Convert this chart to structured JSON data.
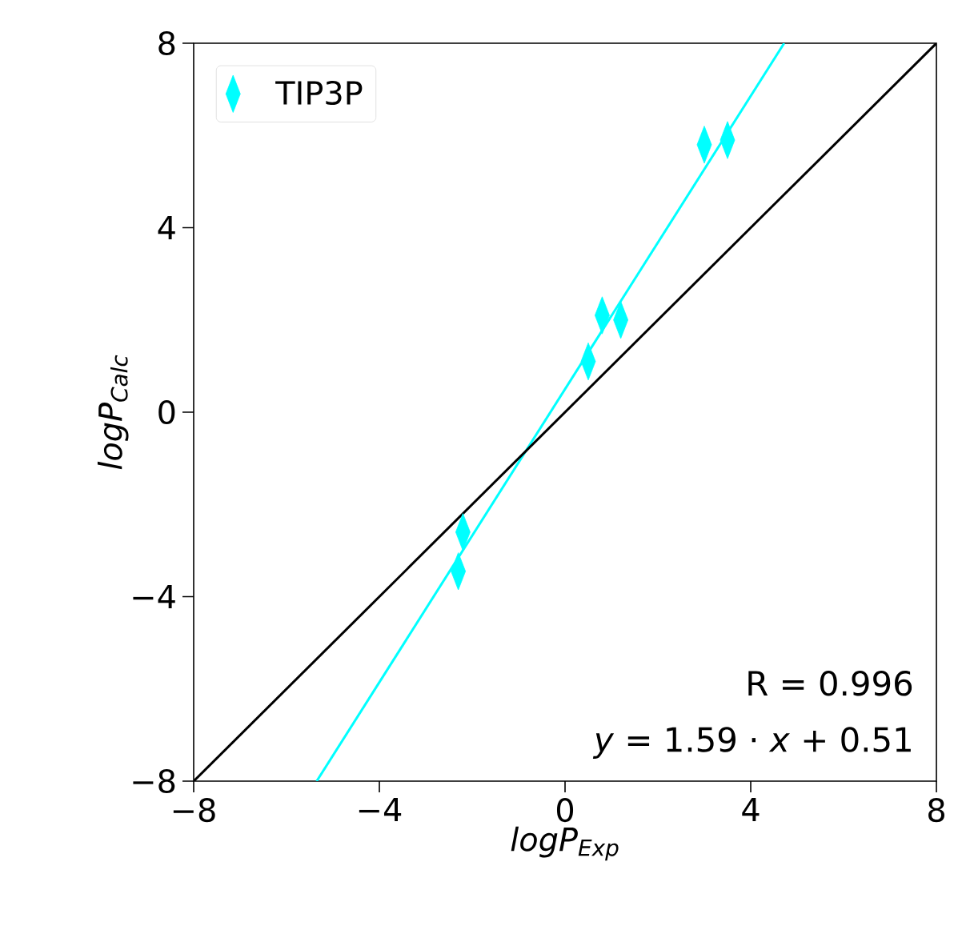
{
  "chart_data": {
    "type": "scatter",
    "xlabel": "logP$_{Exp}$",
    "ylabel": "logP$_{Calc}$",
    "series": [
      {
        "name": "TIP3P",
        "color": "#00ffff",
        "marker": "diamond",
        "x": [
          3.0,
          3.5,
          0.8,
          1.2,
          0.5,
          -2.2,
          -2.3
        ],
        "values": [
          5.8,
          5.9,
          2.1,
          2.0,
          1.1,
          -2.6,
          -3.45
        ]
      },
      {
        "type": "line",
        "color": "#00ffff",
        "x": [
          -5.35,
          4.72
        ],
        "values": [
          -8,
          8
        ]
      },
      {
        "type": "line",
        "color": "#000000",
        "x": [
          -8,
          8
        ],
        "values": [
          -8,
          8
        ]
      }
    ],
    "xlim": [
      -8,
      8
    ],
    "ylim": [
      -8,
      8
    ],
    "xticks": [
      {
        "value": -8,
        "label": "−8"
      },
      {
        "value": -4,
        "label": "−4"
      },
      0,
      4,
      8
    ],
    "yticks": [
      {
        "value": -8,
        "label": "−8"
      },
      {
        "value": -4,
        "label": "−4"
      },
      0,
      4,
      8
    ],
    "legend": "top left",
    "annotations": [
      "R = 0.996",
      "*y* = 1.59 · *x* + 0.51"
    ]
  }
}
